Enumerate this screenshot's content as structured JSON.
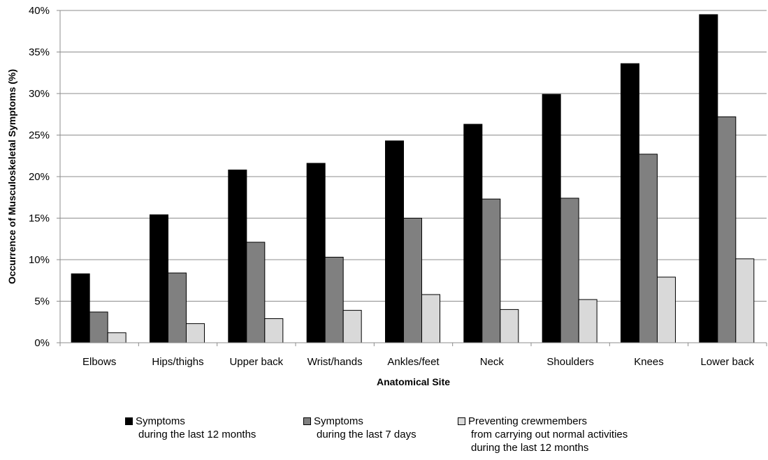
{
  "chart_data": {
    "type": "bar",
    "categories": [
      "Elbows",
      "Hips/thighs",
      "Upper back",
      "Wrist/hands",
      "Ankles/feet",
      "Neck",
      "Shoulders",
      "Knees",
      "Lower back"
    ],
    "series": [
      {
        "name": "Symptoms during the last 12 months",
        "legend_lines": [
          "Symptoms",
          "during the last 12 months"
        ],
        "color": "#000000",
        "values": [
          8.3,
          15.4,
          20.8,
          21.6,
          24.3,
          26.3,
          29.9,
          33.6,
          39.5
        ]
      },
      {
        "name": "Symptoms during the last 7 days",
        "legend_lines": [
          "Symptoms",
          "during the last 7 days"
        ],
        "color": "#808080",
        "values": [
          3.7,
          8.4,
          12.1,
          10.3,
          15.0,
          17.3,
          17.4,
          22.7,
          27.2
        ]
      },
      {
        "name": "Preventing crewmembers from carrying out normal activities during the last 12 months",
        "legend_lines": [
          "Preventing crewmembers",
          "from carrying out normal activities",
          "during the last 12 months"
        ],
        "color": "#d9d9d9",
        "values": [
          1.2,
          2.3,
          2.9,
          3.9,
          5.8,
          4.0,
          5.2,
          7.9,
          10.1
        ]
      }
    ],
    "xlabel": "Anatomical Site",
    "ylabel": "Occurrence of Musculoskeletal Symptoms (%)",
    "ylim": [
      0,
      40
    ],
    "yticks": [
      "0%",
      "5%",
      "10%",
      "15%",
      "20%",
      "25%",
      "30%",
      "35%",
      "40%"
    ],
    "ytick_values": [
      0,
      5,
      10,
      15,
      20,
      25,
      30,
      35,
      40
    ],
    "grid": true,
    "legend_position": "bottom"
  }
}
